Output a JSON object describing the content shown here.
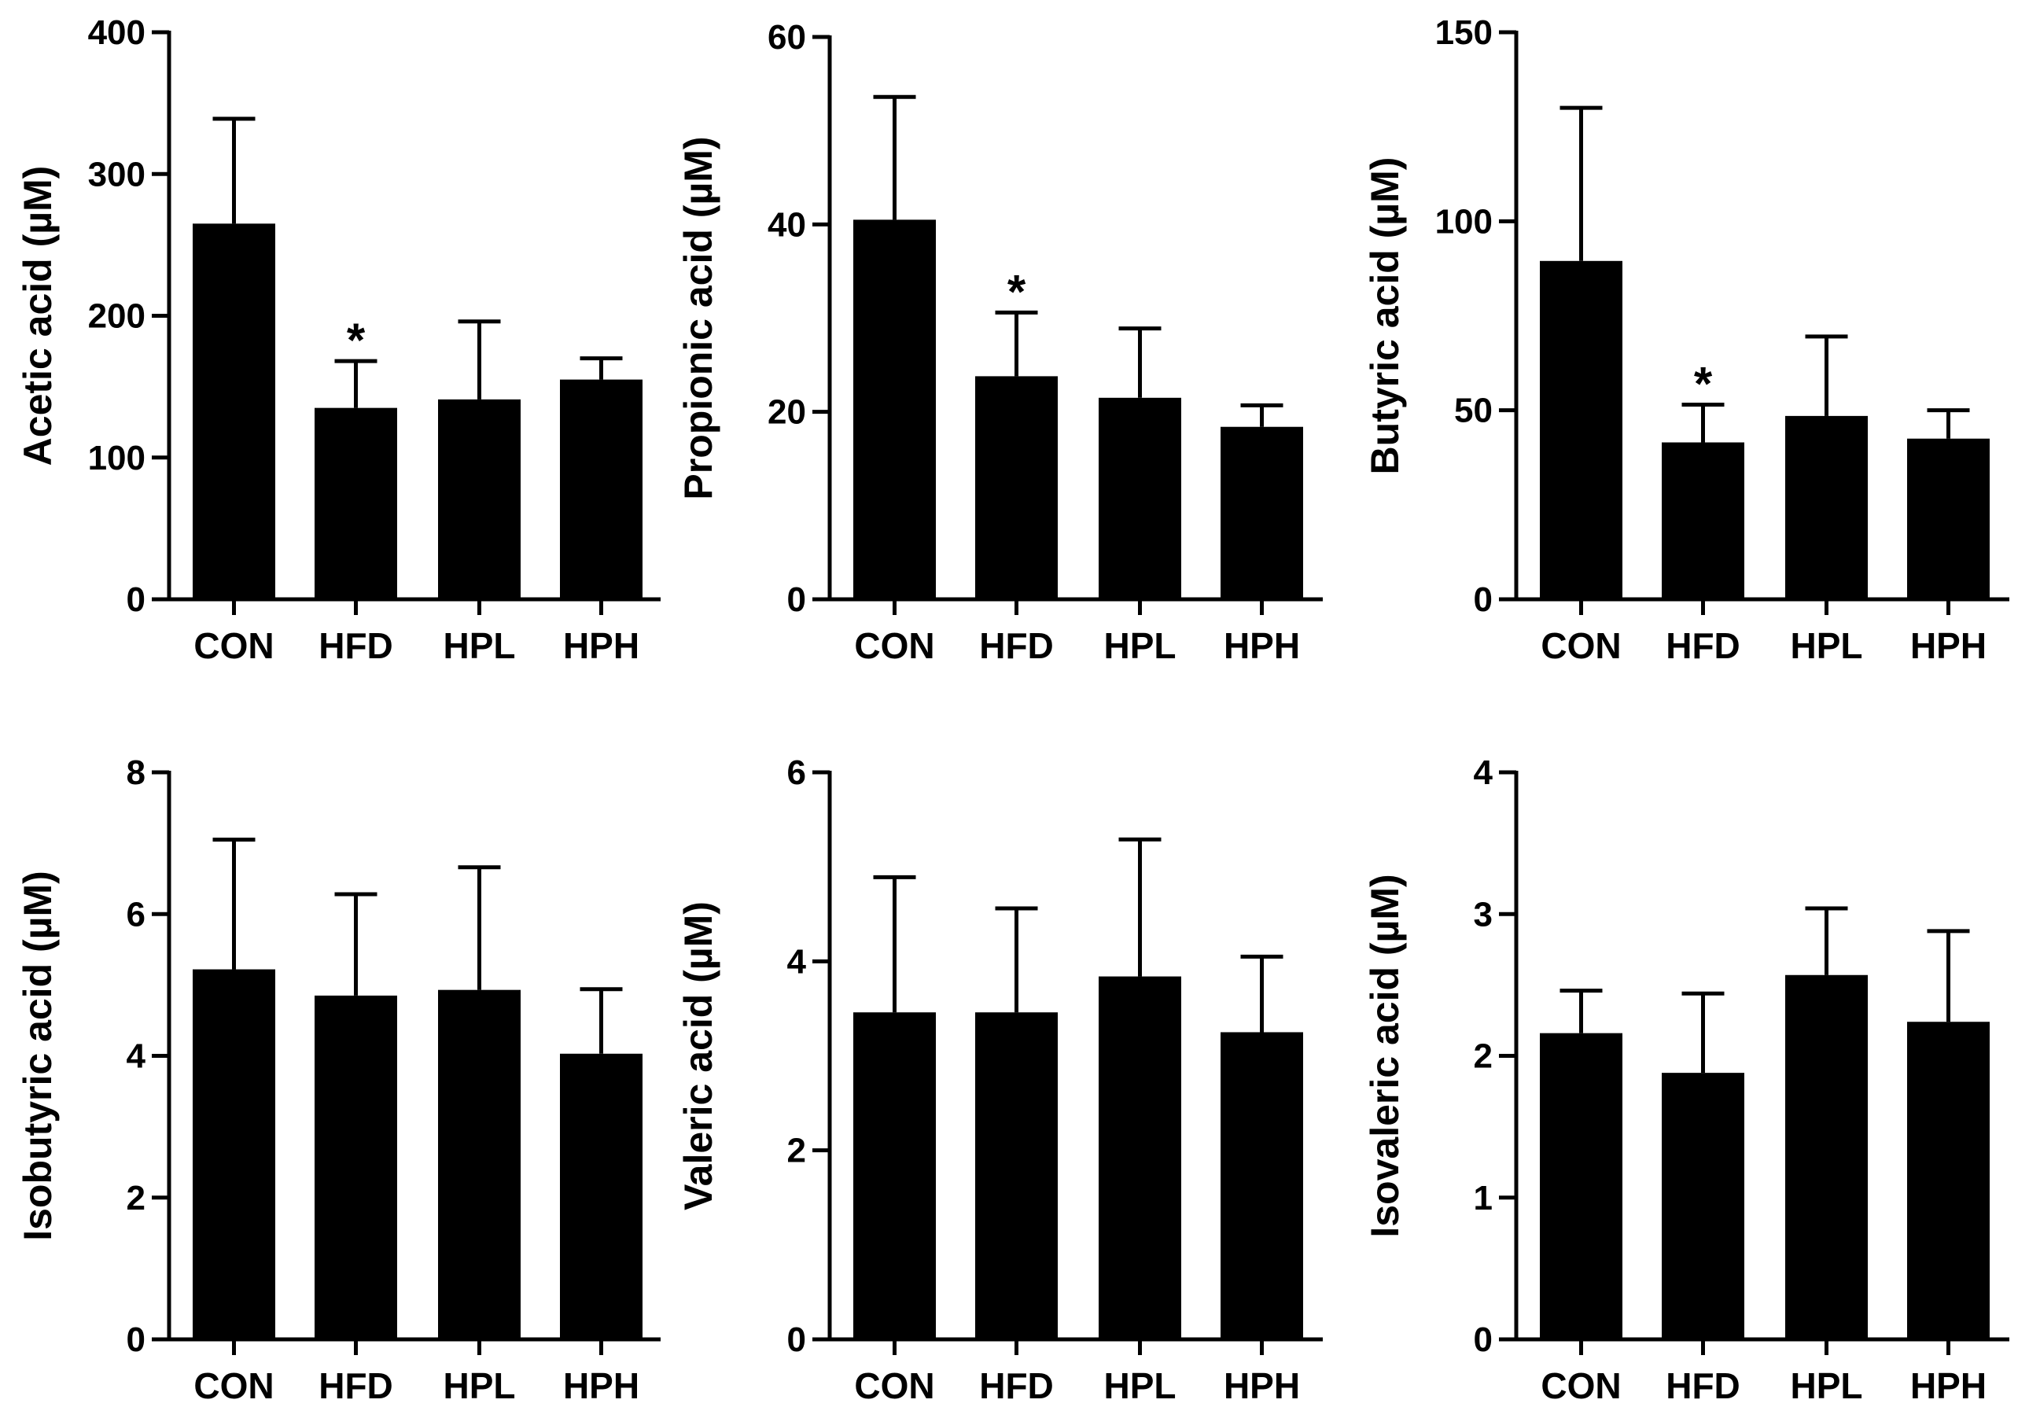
{
  "colors": {
    "bar": "#000000",
    "axis": "#000000",
    "background": "#ffffff"
  },
  "chart_data": [
    {
      "type": "bar",
      "categories": [
        "CON",
        "HFD",
        "HPL",
        "HPH"
      ],
      "values": [
        265,
        135,
        141,
        155
      ],
      "error_upper": [
        339,
        168,
        196,
        170
      ],
      "significance": [
        "",
        "*",
        "",
        ""
      ],
      "xlabel": "",
      "ylabel": "Acetic acid (µM)",
      "ylim": [
        0,
        400
      ],
      "yticks": [
        0,
        100,
        200,
        300,
        400
      ],
      "grid": false,
      "legend": "none"
    },
    {
      "type": "bar",
      "categories": [
        "CON",
        "HFD",
        "HPL",
        "HPH"
      ],
      "values": [
        40.5,
        23.8,
        21.5,
        18.4
      ],
      "error_upper": [
        53.6,
        30.6,
        28.9,
        20.7
      ],
      "significance": [
        "",
        "*",
        "",
        ""
      ],
      "xlabel": "",
      "ylabel": "Propionic acid (µM)",
      "ylim": [
        0,
        60
      ],
      "yticks": [
        0,
        20,
        40,
        60
      ],
      "grid": false,
      "legend": "none"
    },
    {
      "type": "bar",
      "categories": [
        "CON",
        "HFD",
        "HPL",
        "HPH"
      ],
      "values": [
        89.5,
        41.5,
        48.5,
        42.5
      ],
      "error_upper": [
        130,
        51.5,
        69.5,
        50
      ],
      "significance": [
        "",
        "*",
        "",
        ""
      ],
      "xlabel": "",
      "ylabel": "Butyric acid (µM)",
      "ylim": [
        0,
        150
      ],
      "yticks": [
        0,
        50,
        100,
        150
      ],
      "grid": false,
      "legend": "none"
    },
    {
      "type": "bar",
      "categories": [
        "CON",
        "HFD",
        "HPL",
        "HPH"
      ],
      "values": [
        5.22,
        4.85,
        4.93,
        4.03
      ],
      "error_upper": [
        7.05,
        6.28,
        6.66,
        4.94
      ],
      "significance": [
        "",
        "",
        "",
        ""
      ],
      "xlabel": "",
      "ylabel": "Isobutyric acid (µM)",
      "ylim": [
        0,
        8
      ],
      "yticks": [
        0,
        2,
        4,
        6,
        8
      ],
      "grid": false,
      "legend": "none"
    },
    {
      "type": "bar",
      "categories": [
        "CON",
        "HFD",
        "HPL",
        "HPH"
      ],
      "values": [
        3.46,
        3.46,
        3.84,
        3.25
      ],
      "error_upper": [
        4.89,
        4.56,
        5.29,
        4.05
      ],
      "significance": [
        "",
        "",
        "",
        ""
      ],
      "xlabel": "",
      "ylabel": "Valeric acid (µM)",
      "ylim": [
        0,
        6
      ],
      "yticks": [
        0,
        2,
        4,
        6
      ],
      "grid": false,
      "legend": "none"
    },
    {
      "type": "bar",
      "categories": [
        "CON",
        "HFD",
        "HPL",
        "HPH"
      ],
      "values": [
        2.16,
        1.88,
        2.57,
        2.24
      ],
      "error_upper": [
        2.46,
        2.44,
        3.04,
        2.88
      ],
      "significance": [
        "",
        "",
        "",
        ""
      ],
      "xlabel": "",
      "ylabel": "Isovaleric acid (µM)",
      "ylim": [
        0,
        4
      ],
      "yticks": [
        0,
        1,
        2,
        3,
        4
      ],
      "grid": false,
      "legend": "none"
    }
  ]
}
